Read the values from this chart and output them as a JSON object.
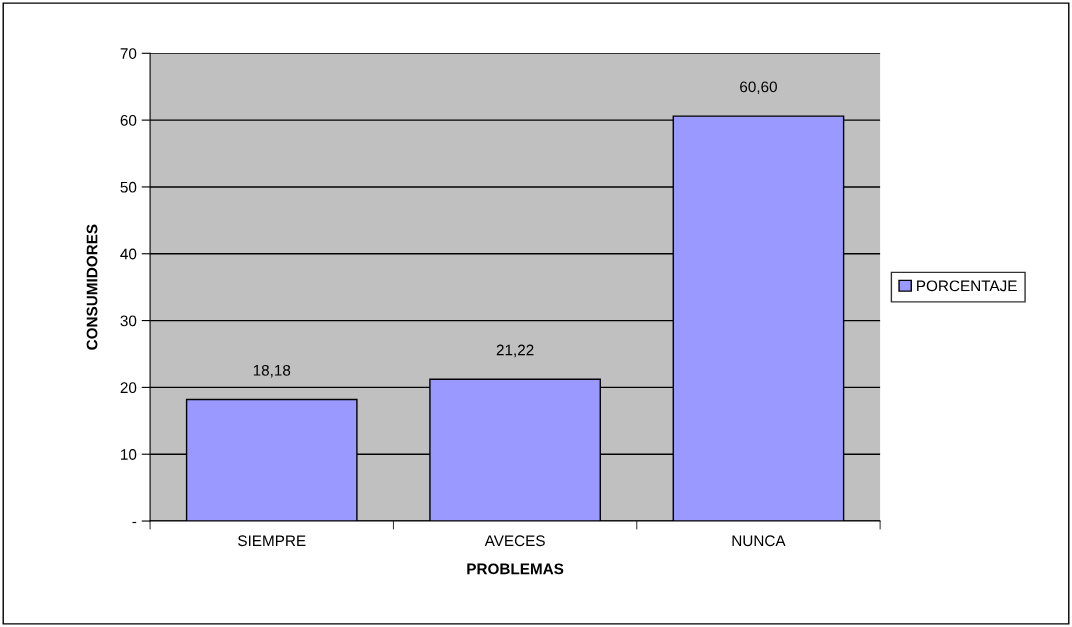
{
  "chart_data": {
    "type": "bar",
    "categories": [
      "SIEMPRE",
      "AVECES",
      "NUNCA"
    ],
    "xlabel": "PROBLEMAS",
    "ylabel": "CONSUMIDORES",
    "series": [
      {
        "name": "PORCENTAJE",
        "color": "#9999ff",
        "values": [
          18.18,
          21.22,
          60.6
        ],
        "value_labels": [
          "18,18",
          "21,22",
          "60,60"
        ]
      }
    ],
    "ylim": [
      0,
      70
    ],
    "yticks": [
      {
        "value": 0,
        "label": "-"
      },
      10,
      20,
      30,
      40,
      50,
      60,
      70
    ],
    "grid": "y",
    "legend": "right"
  }
}
